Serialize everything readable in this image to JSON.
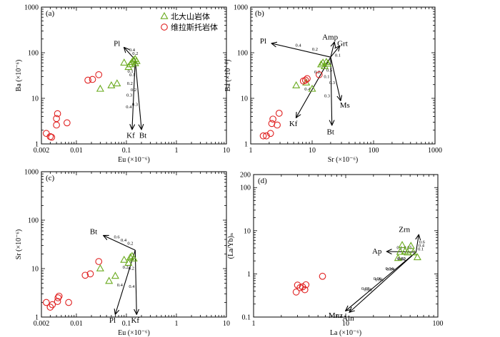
{
  "chart_data": [
    {
      "panel": "(a)",
      "type": "scatter",
      "xscale": "log",
      "yscale": "log",
      "xlim": [
        0.002,
        10
      ],
      "ylim": [
        1,
        1000
      ],
      "xlabel": "Eu (×10⁻⁶)",
      "ylabel": "Ba (×10⁻⁶)",
      "xticks": [
        0.002,
        0.01,
        0.1,
        1,
        10
      ],
      "xtick_labels": [
        "0.002",
        "0.01",
        "0.1",
        "1",
        "10"
      ],
      "yticks": [
        1,
        10,
        100,
        1000
      ],
      "ytick_labels": [
        "1",
        "10",
        "100",
        "1000"
      ],
      "legend": {
        "position": "top-right",
        "entries": [
          {
            "marker": "triangle",
            "label": "北大山岩体"
          },
          {
            "marker": "circle",
            "label": "维拉斯托岩体"
          }
        ]
      },
      "series": [
        {
          "name": "北大山岩体",
          "marker": "triangle",
          "points": [
            [
              0.03,
              16
            ],
            [
              0.05,
              19
            ],
            [
              0.065,
              21
            ],
            [
              0.09,
              60
            ],
            [
              0.11,
              48
            ],
            [
              0.12,
              55
            ],
            [
              0.13,
              62
            ],
            [
              0.14,
              68
            ],
            [
              0.15,
              72
            ],
            [
              0.16,
              65
            ],
            [
              0.15,
              58
            ]
          ]
        },
        {
          "name": "维拉斯托岩体",
          "marker": "circle",
          "points": [
            [
              0.0025,
              1.7
            ],
            [
              0.003,
              1.45
            ],
            [
              0.0032,
              1.4
            ],
            [
              0.004,
              2.6
            ],
            [
              0.004,
              3.6
            ],
            [
              0.0042,
              4.6
            ],
            [
              0.0065,
              2.9
            ],
            [
              0.017,
              25
            ],
            [
              0.021,
              26
            ],
            [
              0.028,
              33
            ]
          ]
        }
      ],
      "vector_origin": [
        0.15,
        70
      ],
      "vectors": [
        {
          "label": "Pl",
          "end": [
            0.09,
            130
          ],
          "ticks": [
            "0.4",
            "0.2"
          ]
        },
        {
          "label": "Kf",
          "end": [
            0.13,
            2.1
          ],
          "ticks": [
            "0.4",
            "0.3",
            "0.2",
            "0.1"
          ]
        },
        {
          "label": "Bt",
          "end": [
            0.2,
            2.1
          ],
          "ticks": [
            "0.3",
            "0.2",
            "0.1"
          ]
        }
      ]
    },
    {
      "panel": "(b)",
      "type": "scatter",
      "xscale": "log",
      "yscale": "log",
      "xlim": [
        1,
        1000
      ],
      "ylim": [
        1,
        1000
      ],
      "xlabel": "Sr (×10⁻⁶)",
      "ylabel": "Ba (×10⁻⁶)",
      "xticks": [
        1,
        10,
        100,
        1000
      ],
      "xtick_labels": [
        "1",
        "10",
        "100",
        "1000"
      ],
      "yticks": [
        1,
        10,
        100,
        1000
      ],
      "ytick_labels": [
        "1",
        "10",
        "100",
        "1000"
      ],
      "series": [
        {
          "name": "北大山岩体",
          "marker": "triangle",
          "points": [
            [
              5.5,
              19
            ],
            [
              8,
              22
            ],
            [
              10,
              16
            ],
            [
              14,
              55
            ],
            [
              15,
              60
            ],
            [
              16,
              50
            ],
            [
              17,
              62
            ],
            [
              18,
              57
            ]
          ]
        },
        {
          "name": "维拉斯托岩体",
          "marker": "circle",
          "points": [
            [
              1.6,
              1.5
            ],
            [
              1.8,
              1.5
            ],
            [
              2.1,
              1.7
            ],
            [
              2.2,
              2.8
            ],
            [
              2.3,
              3.5
            ],
            [
              2.7,
              2.6
            ],
            [
              2.9,
              4.7
            ],
            [
              7.2,
              24
            ],
            [
              7.8,
              25
            ],
            [
              8.3,
              27
            ],
            [
              13,
              33
            ]
          ]
        }
      ],
      "vector_origin": [
        20,
        80
      ],
      "vectors": [
        {
          "label": "Pl",
          "end": [
            2.2,
            160
          ],
          "ticks": [
            "0.4",
            "0.2"
          ]
        },
        {
          "label": "Amp",
          "end": [
            23,
            170
          ],
          "ticks": []
        },
        {
          "label": "Grt",
          "end": [
            28,
            140
          ],
          "ticks": [
            "0.1"
          ]
        },
        {
          "label": "Ms",
          "end": [
            29,
            9
          ],
          "ticks": [
            "0.3",
            "0.5"
          ]
        },
        {
          "label": "Kf",
          "end": [
            5.5,
            3.8
          ],
          "ticks": [
            "0.4",
            "0.2"
          ]
        },
        {
          "label": "Bt",
          "end": [
            21,
            2.6
          ],
          "ticks": [
            "0.3",
            "0.1"
          ]
        }
      ]
    },
    {
      "panel": "(c)",
      "type": "scatter",
      "xscale": "log",
      "yscale": "log",
      "xlim": [
        0.002,
        10
      ],
      "ylim": [
        1,
        1000
      ],
      "xlabel": "Eu (×10⁻⁶)",
      "ylabel": "Sr (×10⁻⁶)",
      "xticks": [
        0.002,
        0.01,
        0.1,
        1,
        10
      ],
      "xtick_labels": [
        "0.002",
        "0.01",
        "0.1",
        "1",
        "10"
      ],
      "yticks": [
        1,
        10,
        100,
        1000
      ],
      "ytick_labels": [
        "1",
        "10",
        "100",
        "1000"
      ],
      "series": [
        {
          "name": "北大山岩体",
          "marker": "triangle",
          "points": [
            [
              0.03,
              10
            ],
            [
              0.045,
              5.5
            ],
            [
              0.06,
              7
            ],
            [
              0.09,
              15
            ],
            [
              0.11,
              13
            ],
            [
              0.12,
              17
            ],
            [
              0.13,
              18
            ],
            [
              0.14,
              16
            ]
          ]
        },
        {
          "name": "维拉斯托岩体",
          "marker": "circle",
          "points": [
            [
              0.0025,
              2.0
            ],
            [
              0.003,
              1.6
            ],
            [
              0.0033,
              1.8
            ],
            [
              0.0042,
              2.1
            ],
            [
              0.0043,
              2.5
            ],
            [
              0.0045,
              2.7
            ],
            [
              0.007,
              2.0
            ],
            [
              0.015,
              7.3
            ],
            [
              0.019,
              7.8
            ],
            [
              0.028,
              14
            ]
          ]
        }
      ],
      "vector_origin": [
        0.15,
        24
      ],
      "vectors": [
        {
          "label": "Bt",
          "end": [
            0.035,
            48
          ],
          "ticks": [
            "0.6",
            "0.4",
            "0.2"
          ]
        },
        {
          "label": "Pl",
          "end": [
            0.06,
            1.15
          ],
          "ticks": [
            "0.4",
            "0.2"
          ]
        },
        {
          "label": "Kf",
          "end": [
            0.16,
            1.15
          ],
          "ticks": [
            "0.4",
            "0.2"
          ]
        }
      ]
    },
    {
      "panel": "(d)",
      "type": "scatter",
      "xscale": "log",
      "yscale": "log",
      "xlim": [
        1,
        100
      ],
      "ylim": [
        0.1,
        200
      ],
      "xlabel": "La (×10⁻⁶)",
      "ylabel": "(La/Yb)ₙ",
      "xticks": [
        1,
        10,
        100
      ],
      "xtick_labels": [
        "1",
        "10",
        "100"
      ],
      "yticks": [
        0.1,
        1,
        10,
        100,
        200
      ],
      "ytick_labels": [
        "0.1",
        "1",
        "10",
        "100",
        "200"
      ],
      "series": [
        {
          "name": "北大山岩体",
          "marker": "triangle",
          "points": [
            [
              37,
              2.3
            ],
            [
              39,
              3.2
            ],
            [
              41,
              4.6
            ],
            [
              44,
              3.3
            ],
            [
              47,
              3.1
            ],
            [
              51,
              4.4
            ],
            [
              54,
              3.1
            ],
            [
              60,
              2.4
            ]
          ]
        },
        {
          "name": "维拉斯托岩体",
          "marker": "circle",
          "points": [
            [
              2.9,
              0.38
            ],
            [
              3.0,
              0.55
            ],
            [
              3.2,
              0.48
            ],
            [
              3.4,
              0.5
            ],
            [
              3.6,
              0.43
            ],
            [
              3.7,
              0.56
            ],
            [
              5.6,
              0.88
            ]
          ]
        }
      ],
      "vector_origin": [
        58,
        3.2
      ],
      "vectors": [
        {
          "label": "Zrn",
          "end": [
            62,
            8
          ],
          "ticks": [
            "0.6",
            "0.4",
            "0.1"
          ]
        },
        {
          "label": "Ap",
          "end": [
            28,
            3.3
          ],
          "ticks": [
            "0.1",
            "0.05"
          ]
        },
        {
          "label": "Mnz",
          "end": [
            10,
            0.14
          ],
          "ticks": [
            "0.08",
            "0.06",
            "0.04",
            "0.02"
          ]
        },
        {
          "label": "Aln",
          "end": [
            11,
            0.13
          ],
          "ticks": [
            "0.08",
            "0.06",
            "0.04",
            "0.02"
          ]
        }
      ]
    }
  ]
}
